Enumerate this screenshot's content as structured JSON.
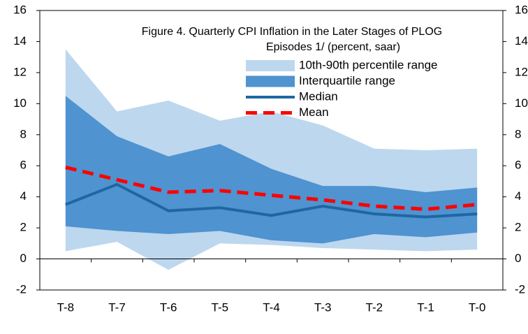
{
  "chart_data": {
    "type": "band-line",
    "title": [
      "Figure 4. Quarterly CPI Inflation in the Later Stages of PLOG",
      "Episodes 1/  (percent, saar)"
    ],
    "categories": [
      "T-8",
      "T-7",
      "T-6",
      "T-5",
      "T-4",
      "T-3",
      "T-2",
      "T-1",
      "T-0"
    ],
    "series": [
      {
        "name": "10th-90th percentile range",
        "color": "#bdd7ee",
        "low": [
          0.5,
          1.1,
          -0.7,
          1.0,
          0.9,
          0.7,
          0.6,
          0.5,
          0.6
        ],
        "high": [
          13.5,
          9.5,
          10.2,
          8.9,
          9.5,
          8.6,
          7.1,
          7.0,
          7.1
        ]
      },
      {
        "name": "Interquartile range",
        "color": "#4f93d0",
        "low": [
          2.1,
          1.8,
          1.6,
          1.8,
          1.2,
          1.0,
          1.6,
          1.4,
          1.7
        ],
        "high": [
          10.5,
          7.9,
          6.6,
          7.4,
          5.8,
          4.7,
          4.7,
          4.3,
          4.6
        ]
      },
      {
        "name": "Median",
        "color": "#1f67a3",
        "values": [
          3.5,
          4.8,
          3.1,
          3.3,
          2.8,
          3.4,
          2.9,
          2.7,
          2.9
        ]
      },
      {
        "name": "Mean",
        "color": "#ff0000",
        "dashed": true,
        "values": [
          5.9,
          5.1,
          4.3,
          4.4,
          4.1,
          3.8,
          3.4,
          3.2,
          3.5
        ]
      }
    ],
    "ylim": [
      -2,
      16
    ],
    "yticks": [
      -2,
      0,
      2,
      4,
      6,
      8,
      10,
      12,
      14,
      16
    ],
    "y2lim": [
      -2,
      16
    ],
    "y2ticks": [
      -2,
      0,
      2,
      4,
      6,
      8,
      10,
      12,
      14,
      16
    ]
  }
}
